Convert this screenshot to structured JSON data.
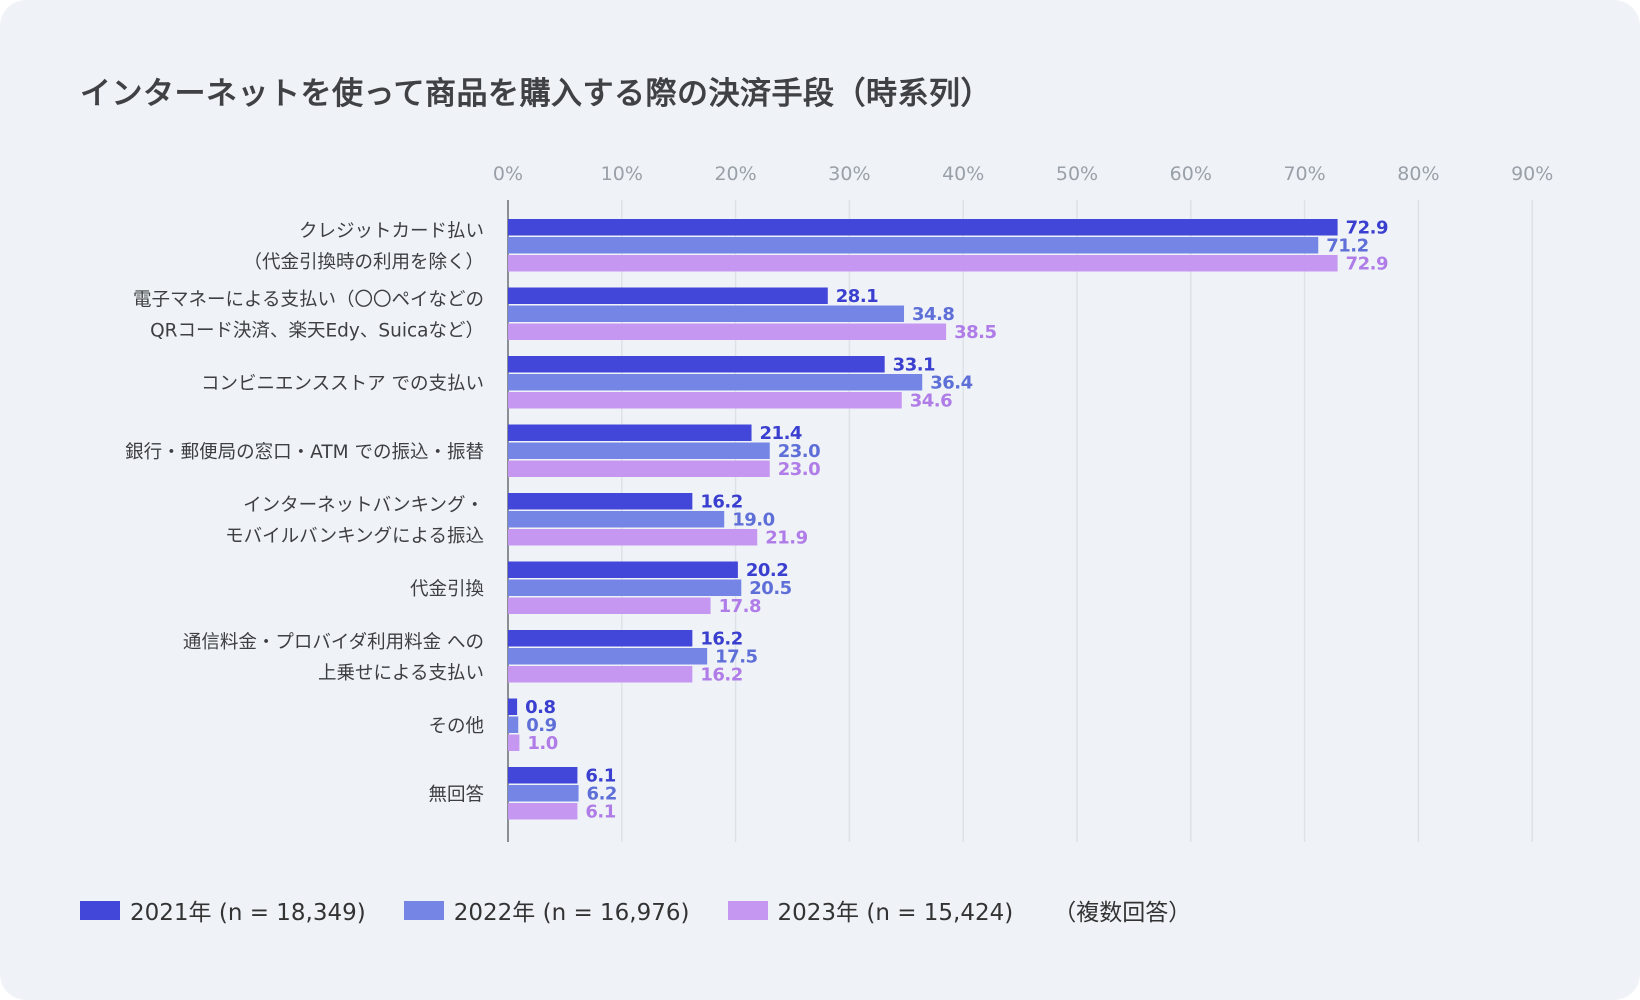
{
  "title": "インターネットを使って商品を購入する際の決済手段（時系列）",
  "legend_note": "（複数回答）",
  "colors": {
    "2021": "#4347d9",
    "2022": "#7585e6",
    "2023": "#c597f0"
  },
  "chart_data": {
    "type": "bar",
    "orientation": "horizontal",
    "title": "インターネットを使って商品を購入する際の決済手段（時系列）",
    "xlim": [
      0,
      90
    ],
    "x_ticks": [
      "0%",
      "10%",
      "20%",
      "30%",
      "40%",
      "50%",
      "60%",
      "70%",
      "80%",
      "90%"
    ],
    "grid": true,
    "legend_position": "bottom-left",
    "categories": [
      [
        "クレジットカード払い",
        "（代金引換時の利用を除く）"
      ],
      [
        "電子マネーによる支払い（〇〇ペイなどの",
        "QRコード決済、楽天Edy、Suicaなど）"
      ],
      [
        "コンビニエンスストア での支払い"
      ],
      [
        "銀行・郵便局の窓口・ATM での振込・振替"
      ],
      [
        "インターネットバンキング・",
        "モバイルバンキングによる振込"
      ],
      [
        "代金引換"
      ],
      [
        "通信料金・プロバイダ利用料金 への",
        "上乗せによる支払い"
      ],
      [
        "その他"
      ],
      [
        "無回答"
      ]
    ],
    "series": [
      {
        "name": "2021年 (n = 18,349)",
        "values": [
          72.9,
          28.1,
          33.1,
          21.4,
          16.2,
          20.2,
          16.2,
          0.8,
          6.1
        ]
      },
      {
        "name": "2022年 (n = 16,976)",
        "values": [
          71.2,
          34.8,
          36.4,
          23.0,
          19.0,
          20.5,
          17.5,
          0.9,
          6.2
        ]
      },
      {
        "name": "2023年 (n = 15,424)",
        "values": [
          72.9,
          38.5,
          34.6,
          23.0,
          21.9,
          17.8,
          16.2,
          1.0,
          6.1
        ]
      }
    ]
  }
}
